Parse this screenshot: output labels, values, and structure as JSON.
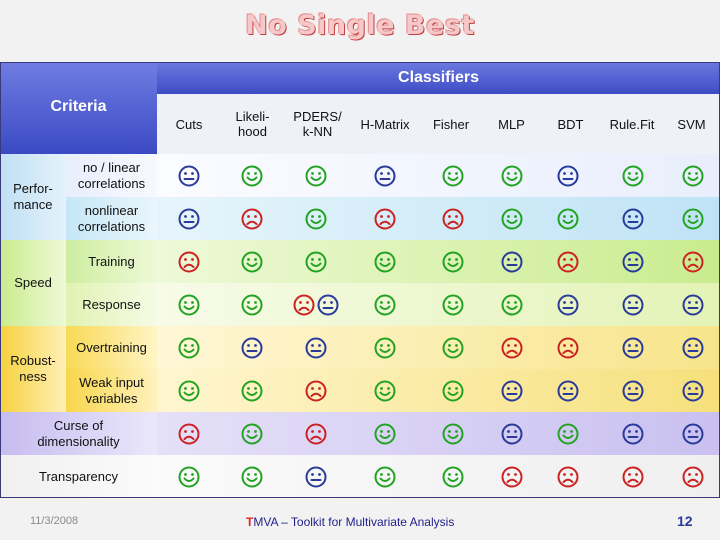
{
  "title": "No Single Best",
  "header": {
    "classifiers": "Classifiers",
    "criteria": "Criteria",
    "columns": [
      "Cuts",
      "Likeli-\nhood",
      "PDERS/\nk-NN",
      "H-Matrix",
      "Fisher",
      "MLP",
      "BDT",
      "Rule.Fit",
      "SVM"
    ]
  },
  "groups": {
    "performance": "Perfor-\nmance",
    "speed": "Speed",
    "robustness": "Robust-\nness"
  },
  "rows": [
    {
      "label": "no / linear\ncorrelations",
      "marks": [
        "neutral",
        "happy",
        "happy",
        "neutral",
        "happy",
        "happy",
        "neutral",
        "happy",
        "happy"
      ]
    },
    {
      "label": "nonlinear\ncorrelations",
      "marks": [
        "neutral",
        "sad",
        "happy",
        "sad",
        "sad",
        "happy",
        "happy",
        "neutral",
        "happy"
      ]
    },
    {
      "label": "Training",
      "marks": [
        "sad",
        "happy",
        "happy",
        "happy",
        "happy",
        "neutral",
        "sad",
        "neutral",
        "sad"
      ]
    },
    {
      "label": "Response",
      "marks": [
        "happy",
        "happy",
        "sad+neutral",
        "happy",
        "happy",
        "happy",
        "neutral",
        "neutral",
        "neutral"
      ]
    },
    {
      "label": "Overtraining",
      "marks": [
        "happy",
        "neutral",
        "neutral",
        "happy",
        "happy",
        "sad",
        "sad",
        "neutral",
        "neutral"
      ]
    },
    {
      "label": "Weak input\nvariables",
      "marks": [
        "happy",
        "happy",
        "sad",
        "happy",
        "happy",
        "neutral",
        "neutral",
        "neutral",
        "neutral"
      ]
    },
    {
      "label": "Curse of\ndimensionality",
      "marks": [
        "sad",
        "happy",
        "sad",
        "happy",
        "happy",
        "neutral",
        "happy",
        "neutral",
        "neutral"
      ]
    },
    {
      "label": "Transparency",
      "marks": [
        "happy",
        "happy",
        "neutral",
        "happy",
        "happy",
        "sad",
        "sad",
        "sad",
        "sad"
      ]
    }
  ],
  "footer": {
    "date": "11/3/2008",
    "tmva_t": "T",
    "tmva_rest": "MVA – Toolkit for Multivariate Analysis",
    "page": "12"
  },
  "colors": {
    "happy": "#22a322",
    "sad": "#cc2222",
    "neutral": "#2a3a9a"
  }
}
